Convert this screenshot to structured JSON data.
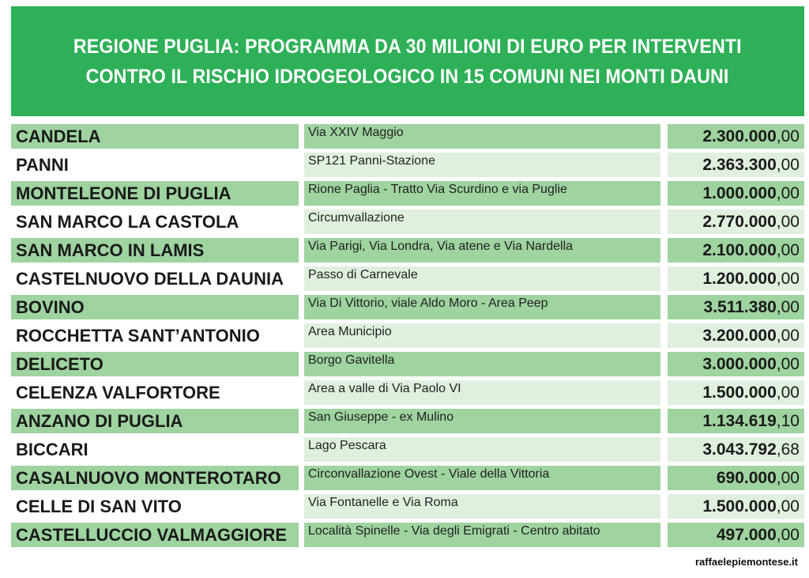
{
  "header": {
    "line1": "REGIONE PUGLIA: PROGRAMMA DA 30 MILIONI DI EURO PER INTERVENTI",
    "line2": "CONTRO IL RISCHIO IDROGEOLOGICO IN 15 COMUNI NEI MONTI DAUNI"
  },
  "rows": [
    {
      "comune": "CANDELA",
      "intervento": "Via XXIV Maggio",
      "importo_int": "2.300.000",
      "importo_dec": ",00"
    },
    {
      "comune": "PANNI",
      "intervento": "SP121 Panni-Stazione",
      "importo_int": "2.363.300",
      "importo_dec": ",00"
    },
    {
      "comune": "MONTELEONE DI PUGLIA",
      "intervento": "Rione Paglia - Tratto Via Scurdino e via Puglie",
      "importo_int": "1.000.000",
      "importo_dec": ",00"
    },
    {
      "comune": "SAN MARCO LA CASTOLA",
      "intervento": "Circumvallazione",
      "importo_int": "2.770.000",
      "importo_dec": ",00"
    },
    {
      "comune": "SAN MARCO IN LAMIS",
      "intervento": "Via Parigi, Via Londra, Via atene e Via Nardella",
      "importo_int": "2.100.000",
      "importo_dec": ",00"
    },
    {
      "comune": "CASTELNUOVO DELLA DAUNIA",
      "intervento": "Passo di Carnevale",
      "importo_int": "1.200.000",
      "importo_dec": ",00"
    },
    {
      "comune": "BOVINO",
      "intervento": "Via Di Vittorio, viale Aldo Moro - Area Peep",
      "importo_int": "3.511.380",
      "importo_dec": ",00"
    },
    {
      "comune": "ROCCHETTA SANT’ANTONIO",
      "intervento": "Area Municipio",
      "importo_int": "3.200.000",
      "importo_dec": ",00"
    },
    {
      "comune": "DELICETO",
      "intervento": "Borgo Gavitella",
      "importo_int": "3.000.000",
      "importo_dec": ",00"
    },
    {
      "comune": "CELENZA VALFORTORE",
      "intervento": "Area a valle di Via Paolo VI",
      "importo_int": "1.500.000",
      "importo_dec": ",00"
    },
    {
      "comune": "ANZANO DI PUGLIA",
      "intervento": "San Giuseppe - ex Mulino",
      "importo_int": "1.134.619",
      "importo_dec": ",10"
    },
    {
      "comune": "BICCARI",
      "intervento": "Lago Pescara",
      "importo_int": "3.043.792",
      "importo_dec": ",68"
    },
    {
      "comune": "CASALNUOVO MONTEROTARO",
      "intervento": "Circonvallazione Ovest - Viale della Vittoria",
      "importo_int": "690.000",
      "importo_dec": ",00"
    },
    {
      "comune": "CELLE DI SAN VITO",
      "intervento": "Via Fontanelle e Via Roma",
      "importo_int": "1.500.000",
      "importo_dec": ",00"
    },
    {
      "comune": "CASTELLUCCIO VALMAGGIORE",
      "intervento": "Località Spinelle - Via degli Emigrati - Centro abitato",
      "importo_int": "497.000",
      "importo_dec": ",00"
    }
  ],
  "footer": {
    "source": "raffaelepiemontese.it"
  }
}
